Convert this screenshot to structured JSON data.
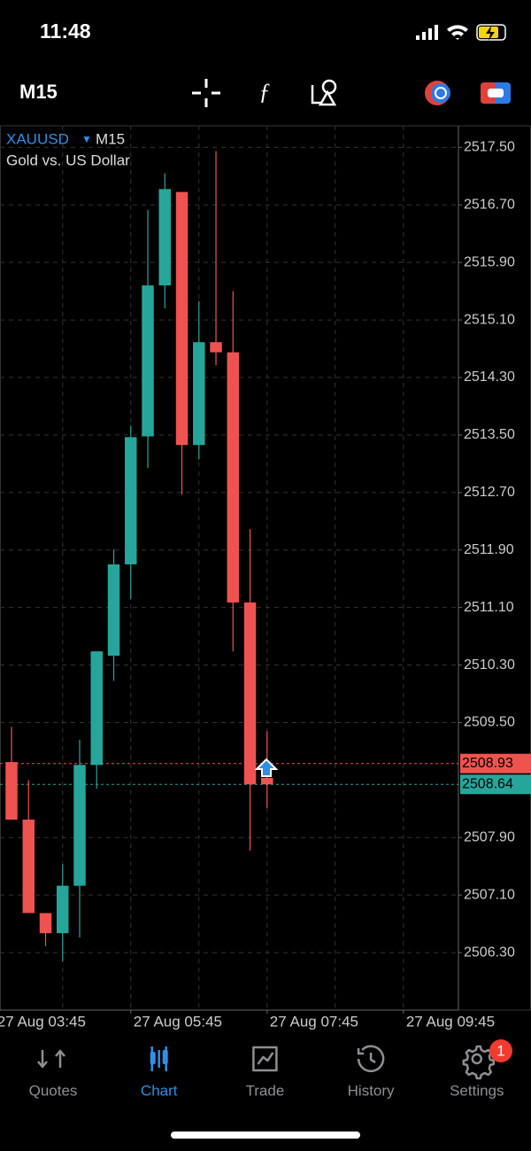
{
  "status_bar": {
    "time": "11:48"
  },
  "toolbar": {
    "timeframe": "M15"
  },
  "chart_data": {
    "type": "candlestick",
    "symbol": "XAUUSD",
    "timeframe": "M15",
    "subtitle": "Gold vs. US Dollar",
    "x": [
      0,
      1,
      2,
      3,
      4,
      5,
      6,
      7,
      8,
      9,
      10,
      11,
      12,
      13,
      14,
      15
    ],
    "open": [
      2508.95,
      2508.15,
      2506.85,
      2506.57,
      2507.23,
      2508.91,
      2510.43,
      2511.7,
      2513.48,
      2515.58,
      2516.88,
      2513.36,
      2514.79,
      2514.65,
      2511.17,
      2508.73
    ],
    "high": [
      2509.44,
      2508.7,
      2506.85,
      2507.53,
      2509.26,
      2510.49,
      2511.91,
      2513.63,
      2516.63,
      2517.14,
      2516.88,
      2515.36,
      2517.45,
      2515.5,
      2512.19,
      2509.38
    ],
    "low": [
      2508.15,
      2506.85,
      2506.39,
      2506.18,
      2506.51,
      2508.58,
      2510.08,
      2511.22,
      2513.04,
      2515.26,
      2512.67,
      2513.16,
      2514.47,
      2510.49,
      2507.72,
      2508.31
    ],
    "close": [
      2508.15,
      2506.85,
      2506.57,
      2507.23,
      2508.91,
      2510.49,
      2511.7,
      2513.47,
      2515.58,
      2516.92,
      2513.36,
      2514.79,
      2514.65,
      2511.17,
      2508.64,
      2508.64
    ],
    "up_color": "#26a69a",
    "down_color": "#ef5350",
    "xlim": [
      -0.675,
      26.23
    ],
    "xticks": [
      {
        "value": -1,
        "label": "27 Aug 03:45"
      },
      {
        "value": 7,
        "label": "27 Aug 05:45"
      },
      {
        "value": 15,
        "label": "27 Aug 07:45"
      },
      {
        "value": 23,
        "label": "27 Aug 09:45"
      }
    ],
    "ylim": [
      2505.5,
      2517.8
    ],
    "yticks": [
      {
        "value": 2517.5,
        "label": "2517.50"
      },
      {
        "value": 2516.7,
        "label": "2516.70"
      },
      {
        "value": 2515.9,
        "label": "2515.90"
      },
      {
        "value": 2515.1,
        "label": "2515.10"
      },
      {
        "value": 2514.3,
        "label": "2514.30"
      },
      {
        "value": 2513.5,
        "label": "2513.50"
      },
      {
        "value": 2512.7,
        "label": "2512.70"
      },
      {
        "value": 2511.9,
        "label": "2511.90"
      },
      {
        "value": 2511.1,
        "label": "2511.10"
      },
      {
        "value": 2510.3,
        "label": "2510.30"
      },
      {
        "value": 2509.5,
        "label": "2509.50"
      },
      {
        "value": 2507.9,
        "label": "2507.90"
      },
      {
        "value": 2507.1,
        "label": "2507.10"
      },
      {
        "value": 2506.3,
        "label": "2506.30"
      }
    ],
    "grid": true,
    "price_lines": [
      {
        "value": 2508.93,
        "label": "2508.93",
        "color": "#ef5350"
      },
      {
        "value": 2508.64,
        "label": "2508.64",
        "color": "#26a69a"
      }
    ]
  },
  "tab_bar": {
    "tabs": [
      "Quotes",
      "Chart",
      "Trade",
      "History",
      "Settings"
    ],
    "active": 1,
    "badge": 1
  }
}
